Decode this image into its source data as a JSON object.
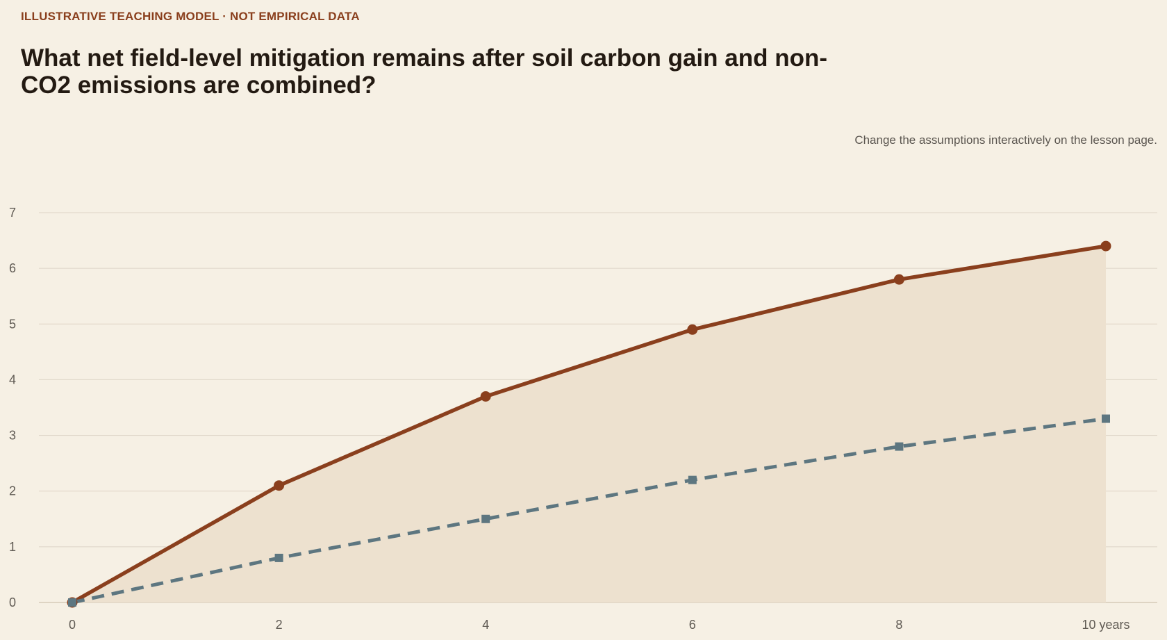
{
  "kicker": "ILLUSTRATIVE TEACHING MODEL · NOT EMPIRICAL DATA",
  "title": "What net field-level mitigation remains after soil carbon gain and non-CO2 emissions are combined?",
  "note": "Change the assumptions interactively on the lesson page.",
  "colors": {
    "background": "#f6f0e4",
    "series_primary": "#8a3f1d",
    "series_secondary": "#5d7680",
    "area_fill": "#ede1cf",
    "grid": "#ddd4c6"
  },
  "chart_data": {
    "type": "line",
    "x": [
      0,
      2,
      4,
      6,
      8,
      10
    ],
    "x_tick_labels": [
      "0",
      "2",
      "4",
      "6",
      "8",
      "10 years"
    ],
    "y_ticks": [
      0,
      1,
      2,
      3,
      4,
      5,
      6,
      7
    ],
    "xlim": [
      0,
      10
    ],
    "ylim": [
      0,
      7
    ],
    "grid": "horizontal",
    "series": [
      {
        "values": [
          0,
          2.1,
          3.7,
          4.9,
          5.8,
          6.4
        ],
        "style": "solid",
        "marker": "circle",
        "area": true,
        "color": "#8a3f1d"
      },
      {
        "values": [
          0,
          0.8,
          1.5,
          2.2,
          2.8,
          3.3
        ],
        "style": "dashed",
        "marker": "square",
        "area": false,
        "color": "#5d7680"
      }
    ]
  }
}
